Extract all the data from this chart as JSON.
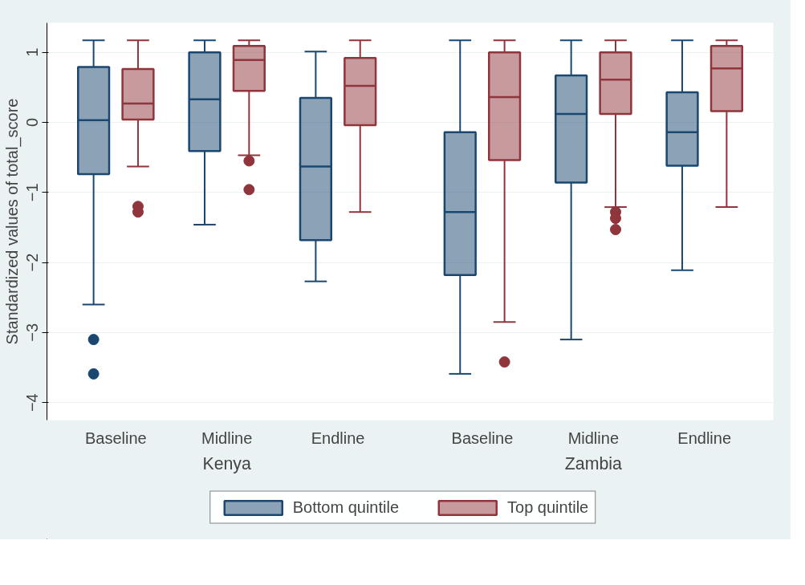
{
  "chart_data": {
    "type": "box",
    "ylabel": "Standardized values of total_score",
    "categories": [
      "Baseline",
      "Midline",
      "Endline",
      "Baseline",
      "Midline",
      "Endline"
    ],
    "annotations": [
      "Kenya",
      "Zambia"
    ],
    "ylim": [
      -4.25,
      1.42
    ],
    "yticks": [
      -4,
      -3,
      -2,
      -1,
      0,
      1
    ],
    "grid": "y",
    "legend": "bottom",
    "series": [
      {
        "name": "Bottom quintile",
        "color": "#1a476f",
        "boxes": [
          {
            "low": -2.6,
            "q1": -0.74,
            "median": 0.03,
            "q3": 0.79,
            "high": 1.17,
            "outliers": [
              -3.1,
              -3.59
            ]
          },
          {
            "low": -1.46,
            "q1": -0.41,
            "median": 0.33,
            "q3": 1.0,
            "high": 1.17
          },
          {
            "low": -2.27,
            "q1": -1.68,
            "median": -0.63,
            "q3": 0.35,
            "high": 1.01
          },
          {
            "low": -3.59,
            "q1": -2.18,
            "median": -1.28,
            "q3": -0.14,
            "high": 1.17
          },
          {
            "low": -3.1,
            "q1": -0.86,
            "median": 0.12,
            "q3": 0.67,
            "high": 1.17
          },
          {
            "low": -2.11,
            "q1": -0.62,
            "median": -0.14,
            "q3": 0.43,
            "high": 1.17
          }
        ]
      },
      {
        "name": "Top quintile",
        "color": "#90353b",
        "boxes": [
          {
            "low": -0.63,
            "q1": 0.04,
            "median": 0.27,
            "q3": 0.76,
            "high": 1.17,
            "outliers": [
              -1.2,
              -1.28
            ]
          },
          {
            "low": -0.47,
            "q1": 0.45,
            "median": 0.89,
            "q3": 1.09,
            "high": 1.17,
            "outliers": [
              -0.55,
              -0.96
            ]
          },
          {
            "low": -1.28,
            "q1": -0.04,
            "median": 0.52,
            "q3": 0.92,
            "high": 1.17
          },
          {
            "low": -2.85,
            "q1": -0.54,
            "median": 0.36,
            "q3": 1.0,
            "high": 1.17,
            "outliers": [
              -3.42
            ]
          },
          {
            "low": -1.21,
            "q1": 0.12,
            "median": 0.61,
            "q3": 1.0,
            "high": 1.17,
            "outliers": [
              -1.28,
              -1.37,
              -1.53
            ]
          },
          {
            "low": -1.21,
            "q1": 0.16,
            "median": 0.77,
            "q3": 1.09,
            "high": 1.17
          }
        ]
      }
    ]
  }
}
